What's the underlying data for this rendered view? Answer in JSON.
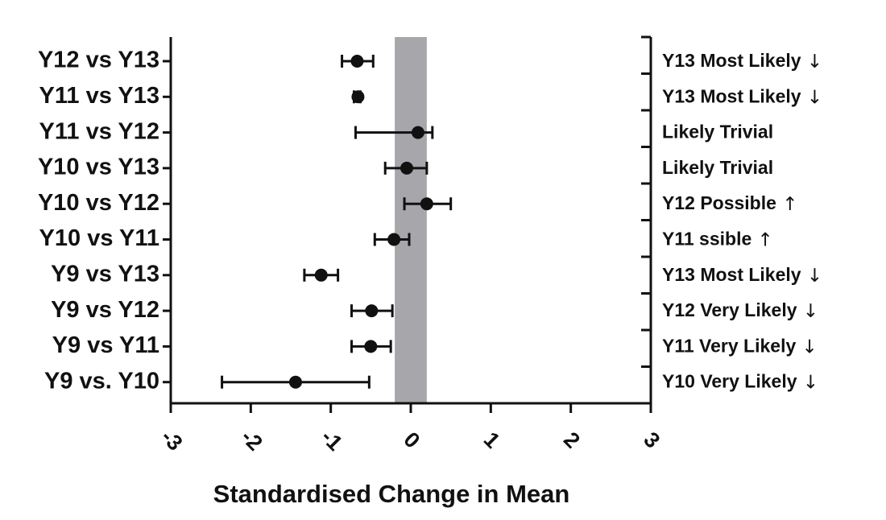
{
  "chart_data": {
    "type": "forest",
    "xlabel": "Standardised Change in Mean",
    "xlim": [
      -3,
      3
    ],
    "xticks": [
      -3,
      -2,
      -1,
      0,
      1,
      2,
      3
    ],
    "xtick_labels": [
      "-3",
      "-2",
      "-1",
      "0",
      "1",
      "2",
      "3"
    ],
    "trivial_band": [
      -0.2,
      0.2
    ],
    "grid": false,
    "colors": {
      "band": "#a6a6ab",
      "marker": "#111111",
      "axis": "#111111"
    },
    "rows": [
      {
        "label": "Y12 vs Y13",
        "mean": -0.67,
        "lower": -0.86,
        "upper": -0.47,
        "inference": "Y13 Most Likely",
        "arrow": "↓"
      },
      {
        "label": "Y11 vs Y13",
        "mean": -0.66,
        "lower": -0.71,
        "upper": -0.63,
        "inference": "Y13 Most Likely",
        "arrow": "↓"
      },
      {
        "label": "Y11 vs Y12",
        "mean": 0.09,
        "lower": -0.69,
        "upper": 0.27,
        "inference": "Likely Trivial",
        "arrow": ""
      },
      {
        "label": "Y10 vs Y13",
        "mean": -0.05,
        "lower": -0.32,
        "upper": 0.2,
        "inference": "Likely Trivial",
        "arrow": ""
      },
      {
        "label": "Y10 vs Y12",
        "mean": 0.2,
        "lower": -0.08,
        "upper": 0.5,
        "inference": "Y12 Possible",
        "arrow": "↑"
      },
      {
        "label": "Y10 vs Y11",
        "mean": -0.21,
        "lower": -0.45,
        "upper": -0.02,
        "inference": "Y11    ssible",
        "arrow": "↑"
      },
      {
        "label": "Y9 vs Y13",
        "mean": -1.12,
        "lower": -1.33,
        "upper": -0.91,
        "inference": "Y13 Most Likely",
        "arrow": "↓"
      },
      {
        "label": "Y9 vs Y12",
        "mean": -0.49,
        "lower": -0.74,
        "upper": -0.23,
        "inference": "Y12 Very Likely",
        "arrow": "↓"
      },
      {
        "label": "Y9 vs Y11",
        "mean": -0.5,
        "lower": -0.74,
        "upper": -0.25,
        "inference": "Y11 Very Likely",
        "arrow": "↓"
      },
      {
        "label": "Y9 vs. Y10",
        "mean": -1.44,
        "lower": -2.36,
        "upper": -0.52,
        "inference": "Y10 Very Likely",
        "arrow": "↓"
      }
    ]
  }
}
